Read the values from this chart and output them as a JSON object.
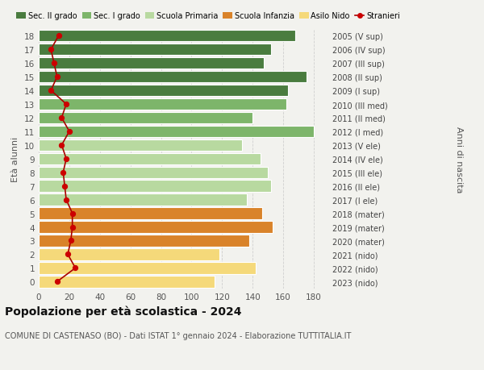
{
  "ages": [
    18,
    17,
    16,
    15,
    14,
    13,
    12,
    11,
    10,
    9,
    8,
    7,
    6,
    5,
    4,
    3,
    2,
    1,
    0
  ],
  "years_labels": [
    "2005 (V sup)",
    "2006 (IV sup)",
    "2007 (III sup)",
    "2008 (II sup)",
    "2009 (I sup)",
    "2010 (III med)",
    "2011 (II med)",
    "2012 (I med)",
    "2013 (V ele)",
    "2014 (IV ele)",
    "2015 (III ele)",
    "2016 (II ele)",
    "2017 (I ele)",
    "2018 (mater)",
    "2019 (mater)",
    "2020 (mater)",
    "2021 (nido)",
    "2022 (nido)",
    "2023 (nido)"
  ],
  "bar_values": [
    168,
    152,
    147,
    175,
    163,
    162,
    140,
    180,
    133,
    145,
    150,
    152,
    136,
    146,
    153,
    138,
    118,
    142,
    115
  ],
  "stranieri_values": [
    13,
    8,
    10,
    12,
    8,
    18,
    15,
    20,
    15,
    18,
    16,
    17,
    18,
    22,
    22,
    21,
    19,
    24,
    12
  ],
  "bar_colors": [
    "#4a7c3f",
    "#4a7c3f",
    "#4a7c3f",
    "#4a7c3f",
    "#4a7c3f",
    "#7db56a",
    "#7db56a",
    "#7db56a",
    "#b8d9a0",
    "#b8d9a0",
    "#b8d9a0",
    "#b8d9a0",
    "#b8d9a0",
    "#d9832a",
    "#d9832a",
    "#d9832a",
    "#f5d97a",
    "#f5d97a",
    "#f5d97a"
  ],
  "legend_labels": [
    "Sec. II grado",
    "Sec. I grado",
    "Scuola Primaria",
    "Scuola Infanzia",
    "Asilo Nido",
    "Stranieri"
  ],
  "legend_colors": [
    "#4a7c3f",
    "#7db56a",
    "#b8d9a0",
    "#d9832a",
    "#f5d97a",
    "#cc0000"
  ],
  "title": "Popolazione per età scolastica - 2024",
  "subtitle": "COMUNE DI CASTENASO (BO) - Dati ISTAT 1° gennaio 2024 - Elaborazione TUTTITALIA.IT",
  "ylabel": "Età alunni",
  "ylabel2": "Anni di nascita",
  "xlim": [
    0,
    190
  ],
  "xticks": [
    0,
    20,
    40,
    60,
    80,
    100,
    120,
    140,
    160,
    180
  ],
  "background_color": "#f2f2ee",
  "grid_color": "#cccccc",
  "stranieri_line_color": "#aa0000",
  "stranieri_dot_color": "#cc0000"
}
